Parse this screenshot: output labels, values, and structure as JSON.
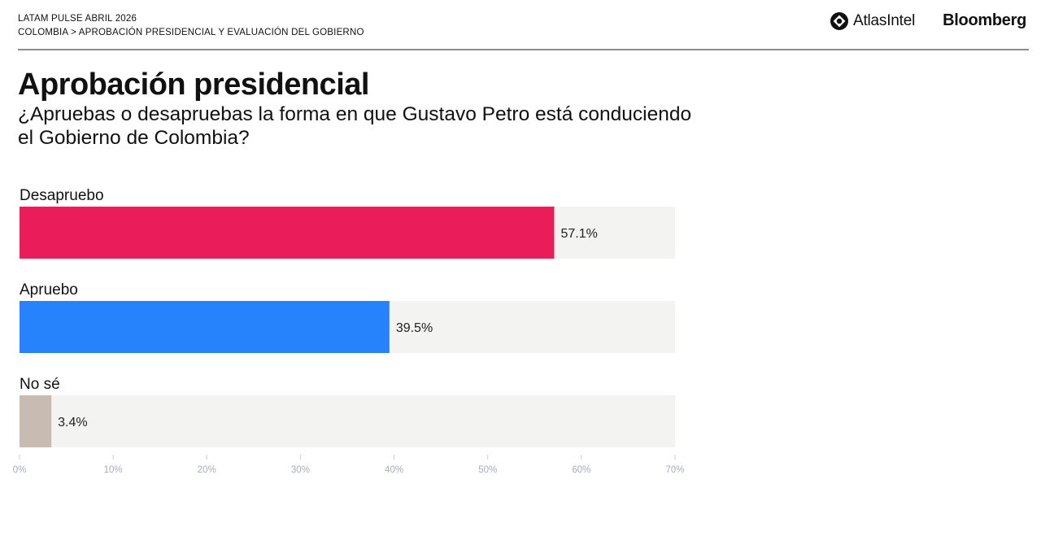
{
  "header": {
    "kicker_line1": "LATAM PULSE ABRIL 2026",
    "kicker_line2": "COLOMBIA > APROBACIÓN PRESIDENCIAL Y EVALUACIÓN DEL GOBIERNO",
    "atlas_brand": "AtlasIntel",
    "bloomberg_brand": "Bloomberg"
  },
  "chart_data": {
    "type": "bar",
    "orientation": "horizontal",
    "title": "Aprobación presidencial",
    "subtitle": "¿Apruebas o desapruebas la forma en que Gustavo Petro está conduciendo el Gobierno de Colombia?",
    "categories": [
      "Desapruebo",
      "Apruebo",
      "No sé"
    ],
    "values": [
      57.1,
      39.5,
      3.4
    ],
    "value_labels": [
      "57.1%",
      "39.5%",
      "3.4%"
    ],
    "colors": [
      "#eb1c5a",
      "#2683fc",
      "#c8bbb2"
    ],
    "track_color": "#f3f3f1",
    "xlim": [
      0,
      70
    ],
    "ticks": [
      0,
      10,
      20,
      30,
      40,
      50,
      60,
      70
    ],
    "tick_labels": [
      "0%",
      "10%",
      "20%",
      "30%",
      "40%",
      "50%",
      "60%",
      "70%"
    ],
    "grid": false,
    "legend": "none"
  }
}
